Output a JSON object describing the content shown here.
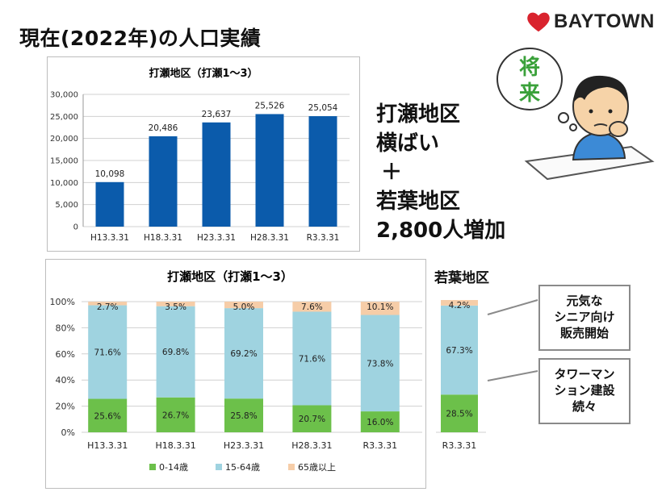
{
  "header": {
    "title": "現在(2022年)の人口実績"
  },
  "logo": {
    "text": "BAYTOWN",
    "heart_color": "#d9232e"
  },
  "illustration": {
    "bubble_text": "将来",
    "bubble_text_color": "#3aa13a"
  },
  "note": {
    "lines": [
      "打瀬地区",
      "横ばい",
      "＋",
      "若葉地区",
      "2,800人増加"
    ]
  },
  "wakaba": {
    "title": "若葉地区"
  },
  "callouts": [
    {
      "lines": [
        "元気な",
        "シニア向け",
        "販売開始"
      ]
    },
    {
      "lines": [
        "タワーマン",
        "ション建設",
        "続々"
      ]
    }
  ],
  "colors": {
    "bar": "#0b5bab",
    "age_0_14": "#6cc04a",
    "age_15_64": "#9fd3e0",
    "age_65": "#f6cda8",
    "gridline": "#d0d0d0"
  },
  "chart_data": [
    {
      "type": "bar",
      "title": "打瀬地区（打瀬1〜3）",
      "categories": [
        "H13.3.31",
        "H18.3.31",
        "H23.3.31",
        "H28.3.31",
        "R3.3.31"
      ],
      "values": [
        10098,
        20486,
        23637,
        25526,
        25054
      ],
      "value_labels": [
        "10,098",
        "20,486",
        "23,637",
        "25,526",
        "25,054"
      ],
      "yticks": [
        "0",
        "5,000",
        "10,000",
        "15,000",
        "20,000",
        "25,000",
        "30,000"
      ],
      "ylim": [
        0,
        30000
      ],
      "grid": true
    },
    {
      "type": "bar",
      "stacked": true,
      "title": "打瀬地区（打瀬1〜3）",
      "categories": [
        "H13.3.31",
        "H18.3.31",
        "H23.3.31",
        "H28.3.31",
        "R3.3.31"
      ],
      "series": [
        {
          "name": "0-14歳",
          "values": [
            25.6,
            26.7,
            25.8,
            20.7,
            16.0
          ],
          "labels": [
            "25.6%",
            "26.7%",
            "25.8%",
            "20.7%",
            "16.0%"
          ]
        },
        {
          "name": "15-64歳",
          "values": [
            71.6,
            69.8,
            69.2,
            71.6,
            73.8
          ],
          "labels": [
            "71.6%",
            "69.8%",
            "69.2%",
            "71.6%",
            "73.8%"
          ]
        },
        {
          "name": "65歳以上",
          "values": [
            2.7,
            3.5,
            5.0,
            7.6,
            10.1
          ],
          "labels": [
            "2.7%",
            "3.5%",
            "5.0%",
            "7.6%",
            "10.1%"
          ]
        }
      ],
      "yticks": [
        "0%",
        "20%",
        "40%",
        "60%",
        "80%",
        "100%"
      ],
      "ylim": [
        0,
        100
      ],
      "legend_position": "bottom",
      "grid": true
    },
    {
      "type": "bar",
      "stacked": true,
      "title": "若葉地区",
      "categories": [
        "R3.3.31"
      ],
      "series": [
        {
          "name": "0-14歳",
          "values": [
            28.5
          ],
          "labels": [
            "28.5%"
          ]
        },
        {
          "name": "15-64歳",
          "values": [
            67.3
          ],
          "labels": [
            "67.3%"
          ]
        },
        {
          "name": "65歳以上",
          "values": [
            4.2
          ],
          "labels": [
            "4.2%"
          ]
        }
      ],
      "ylim": [
        0,
        100
      ]
    }
  ]
}
